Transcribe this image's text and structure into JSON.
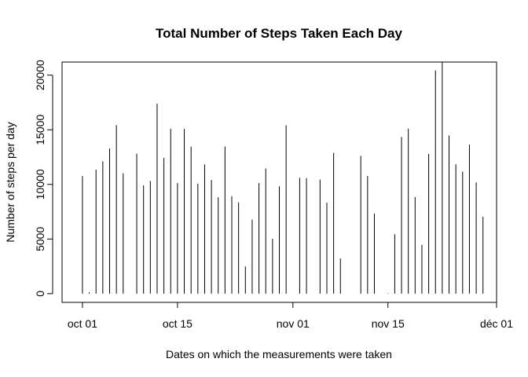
{
  "chart_data": {
    "type": "bar",
    "style": "histogram-spikes",
    "title": "Total Number of Steps Taken Each Day",
    "xlabel": "Dates on which the measurements were taken",
    "ylabel": "Number of steps per day",
    "xlim": [
      "2012-09-28",
      "2012-12-01"
    ],
    "ylim": [
      -800,
      21200
    ],
    "x_ticks": [
      {
        "date": "2012-10-01",
        "label": "oct 01"
      },
      {
        "date": "2012-10-15",
        "label": "oct 15"
      },
      {
        "date": "2012-11-01",
        "label": "nov 01"
      },
      {
        "date": "2012-11-15",
        "label": "nov 15"
      },
      {
        "date": "2012-12-01",
        "label": "déc 01"
      }
    ],
    "y_ticks": [
      0,
      5000,
      10000,
      15000,
      20000
    ],
    "grid": false,
    "color": "#000000",
    "x": [
      "2012-10-01",
      "2012-10-02",
      "2012-10-03",
      "2012-10-04",
      "2012-10-05",
      "2012-10-06",
      "2012-10-07",
      "2012-10-09",
      "2012-10-10",
      "2012-10-11",
      "2012-10-12",
      "2012-10-13",
      "2012-10-14",
      "2012-10-15",
      "2012-10-16",
      "2012-10-17",
      "2012-10-18",
      "2012-10-19",
      "2012-10-20",
      "2012-10-21",
      "2012-10-22",
      "2012-10-23",
      "2012-10-24",
      "2012-10-25",
      "2012-10-26",
      "2012-10-27",
      "2012-10-28",
      "2012-10-29",
      "2012-10-30",
      "2012-10-31",
      "2012-11-02",
      "2012-11-03",
      "2012-11-05",
      "2012-11-06",
      "2012-11-07",
      "2012-11-08",
      "2012-11-11",
      "2012-11-12",
      "2012-11-13",
      "2012-11-15",
      "2012-11-16",
      "2012-11-17",
      "2012-11-18",
      "2012-11-19",
      "2012-11-20",
      "2012-11-21",
      "2012-11-22",
      "2012-11-23",
      "2012-11-24",
      "2012-11-25",
      "2012-11-26",
      "2012-11-27",
      "2012-11-28",
      "2012-11-29"
    ],
    "values": [
      10766,
      126,
      11352,
      12116,
      13294,
      15420,
      11015,
      12811,
      9900,
      10304,
      17382,
      12426,
      15098,
      10139,
      15084,
      13452,
      10056,
      11829,
      10395,
      8821,
      13460,
      8918,
      8355,
      2492,
      6778,
      10119,
      11458,
      5018,
      9819,
      15414,
      10600,
      10571,
      10439,
      8334,
      12883,
      3219,
      12608,
      10765,
      7336,
      41,
      5441,
      14339,
      15110,
      8841,
      4472,
      12787,
      20427,
      21194,
      14478,
      11834,
      11162,
      13646,
      10183,
      7047
    ]
  }
}
